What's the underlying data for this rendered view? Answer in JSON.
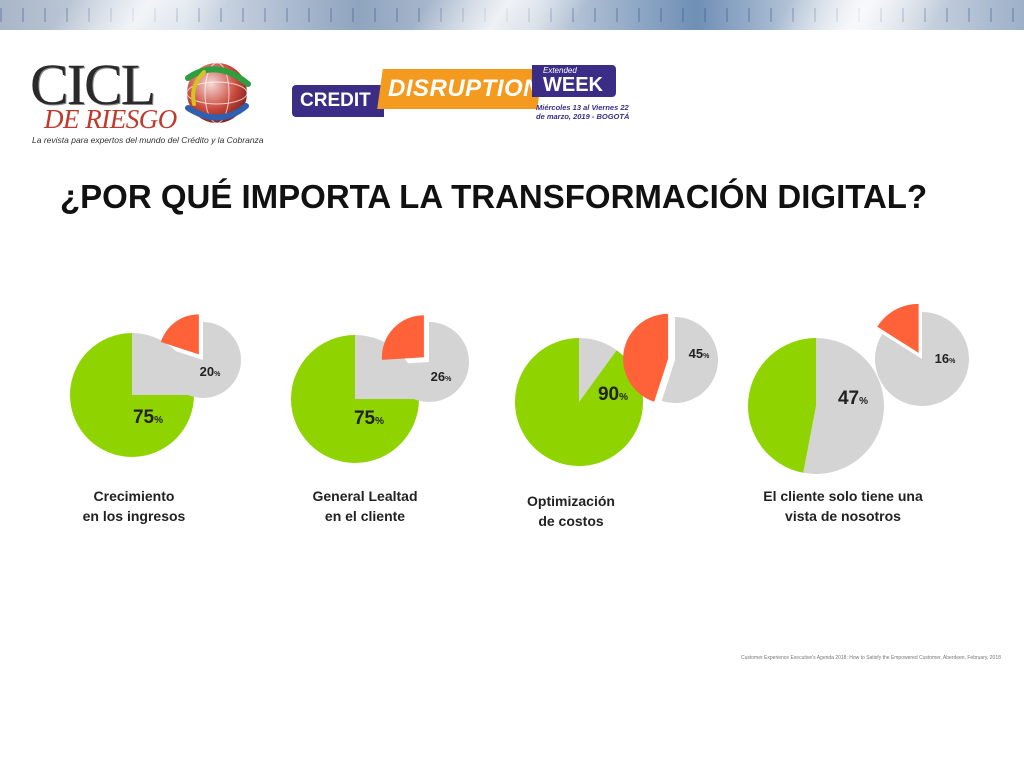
{
  "logo_ciclo": {
    "word": "CICL",
    "sub": "DE RIESGO",
    "tagline": "La revista para expertos del mundo del Crédito y la Cobranza"
  },
  "logo_event": {
    "credit": "CREDIT",
    "disruption": "DISRUPTION",
    "extended": "Extended",
    "week": "WEEK",
    "dates_line1": "Miércoles 13 al Viernes 22",
    "dates_line2": "de marzo, 2019 - BOGOTÁ"
  },
  "title": "¿POR QUÉ IMPORTA LA TRANSFORMACIÓN DIGITAL?",
  "colors": {
    "green": "#8fd400",
    "orange": "#ff6138",
    "gray": "#d4d4d4"
  },
  "chart_data": [
    {
      "type": "pie",
      "caption": "Crecimiento\nen los ingresos",
      "slices": [
        {
          "label": "75%",
          "value": 75,
          "color": "#8fd400"
        },
        {
          "label": "20%",
          "value": 20,
          "color": "#ff6138"
        }
      ]
    },
    {
      "type": "pie",
      "caption": "General Lealtad\nen el cliente",
      "slices": [
        {
          "label": "75%",
          "value": 75,
          "color": "#8fd400"
        },
        {
          "label": "26%",
          "value": 26,
          "color": "#ff6138"
        }
      ]
    },
    {
      "type": "pie",
      "caption": "Optimización\nde costos",
      "slices": [
        {
          "label": "90%",
          "value": 90,
          "color": "#8fd400"
        },
        {
          "label": "45%",
          "value": 45,
          "color": "#ff6138"
        }
      ]
    },
    {
      "type": "pie",
      "caption": "El cliente solo tiene una\nvista de nosotros",
      "slices": [
        {
          "label": "47%",
          "value": 47,
          "color": "#8fd400"
        },
        {
          "label": "16%",
          "value": 16,
          "color": "#ff6138"
        }
      ]
    }
  ],
  "source": "Customer Experience Executive's Agenda 2018: How to Satisfy the Empowered Customer, Aberdeen, February, 2018"
}
